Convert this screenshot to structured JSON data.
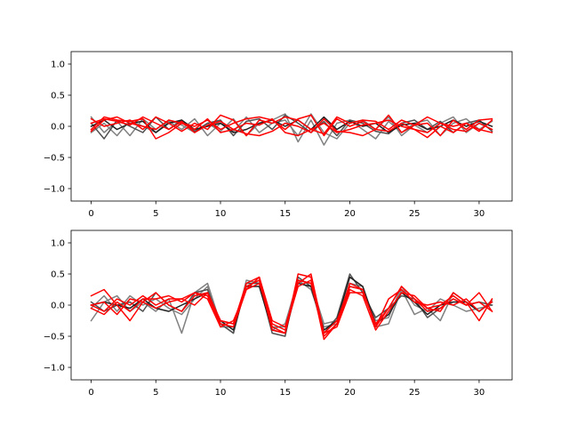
{
  "chart_data": [
    {
      "type": "line",
      "title": "",
      "xlabel": "",
      "ylabel": "",
      "xlim": [
        -1.55,
        32.55
      ],
      "ylim": [
        -1.2,
        1.2
      ],
      "xticks": [
        0,
        5,
        10,
        15,
        20,
        25,
        30
      ],
      "yticks": [
        -1.0,
        -0.5,
        0.0,
        0.5,
        1.0
      ],
      "xtick_labels": [
        "0",
        "5",
        "10",
        "15",
        "20",
        "25",
        "30"
      ],
      "ytick_labels": [
        "−1.0",
        "−0.5",
        "0.0",
        "0.5",
        "1.0"
      ],
      "grid": false,
      "x": [
        0,
        1,
        2,
        3,
        4,
        5,
        6,
        7,
        8,
        9,
        10,
        11,
        12,
        13,
        14,
        15,
        16,
        17,
        18,
        19,
        20,
        21,
        22,
        23,
        24,
        25,
        26,
        27,
        28,
        29,
        30,
        31
      ],
      "series": [
        {
          "color": "#808080",
          "values": [
            0.15,
            -0.1,
            0.08,
            -0.15,
            0.12,
            -0.05,
            0.1,
            0.02,
            -0.1,
            0.05,
            -0.08,
            0.12,
            -0.15,
            0.05,
            0.1,
            0.2,
            -0.25,
            0.1,
            -0.3,
            0.05,
            0.1,
            -0.05,
            -0.2,
            0.08,
            -0.1,
            0.05,
            0.1,
            -0.15,
            0.05,
            0.12,
            -0.05,
            0.08
          ]
        },
        {
          "color": "#808080",
          "values": [
            -0.1,
            0.05,
            -0.15,
            0.1,
            0.0,
            -0.1,
            0.08,
            -0.05,
            0.12,
            -0.15,
            0.05,
            -0.08,
            0.15,
            -0.1,
            0.05,
            0.1,
            -0.15,
            0.2,
            -0.1,
            -0.2,
            0.05,
            0.1,
            -0.05,
            0.15,
            -0.15,
            0.02,
            -0.1,
            0.05,
            0.15,
            -0.1,
            0.05,
            -0.05
          ]
        },
        {
          "color": "#505050",
          "values": [
            0.05,
            -0.2,
            0.1,
            0.0,
            -0.1,
            0.15,
            -0.05,
            0.1,
            -0.08,
            0.05,
            0.1,
            -0.15,
            0.08,
            0.12,
            -0.05,
            0.18,
            0.05,
            -0.1,
            0.08,
            -0.15,
            0.1,
            0.05,
            -0.08,
            -0.12,
            0.05,
            0.1,
            -0.05,
            0.08,
            -0.1,
            0.05,
            0.1,
            -0.08
          ]
        },
        {
          "color": "#202020",
          "values": [
            0.0,
            0.1,
            -0.05,
            0.05,
            0.08,
            -0.1,
            0.05,
            0.1,
            -0.05,
            0.0,
            0.05,
            -0.1,
            -0.05,
            0.05,
            0.1,
            0.0,
            0.1,
            -0.05,
            0.15,
            -0.05,
            0.08,
            0.0,
            0.05,
            -0.1,
            0.02,
            0.05,
            -0.05,
            0.0,
            0.1,
            0.0,
            0.08,
            0.0
          ]
        },
        {
          "color": "#ff0000",
          "values": [
            -0.05,
            0.15,
            0.1,
            0.08,
            0.12,
            -0.2,
            -0.1,
            0.05,
            0.0,
            0.1,
            -0.05,
            0.05,
            0.12,
            0.15,
            0.1,
            -0.05,
            0.12,
            0.18,
            -0.15,
            0.12,
            0.0,
            0.08,
            -0.05,
            0.18,
            -0.1,
            0.02,
            0.05,
            -0.15,
            0.1,
            -0.05,
            0.1,
            0.12
          ]
        },
        {
          "color": "#ff0000",
          "values": [
            0.12,
            0.0,
            0.05,
            0.1,
            -0.05,
            0.15,
            0.05,
            -0.08,
            0.05,
            -0.05,
            0.18,
            0.1,
            -0.15,
            0.1,
            0.05,
            0.15,
            0.1,
            -0.05,
            -0.12,
            0.15,
            0.05,
            0.1,
            0.08,
            -0.05,
            0.1,
            0.02,
            0.15,
            0.05,
            -0.05,
            -0.08,
            0.05,
            -0.05
          ]
        },
        {
          "color": "#ff0000",
          "values": [
            0.05,
            0.12,
            0.08,
            0.02,
            0.15,
            0.05,
            -0.05,
            0.08,
            -0.1,
            0.02,
            0.08,
            -0.05,
            0.05,
            0.02,
            0.12,
            -0.1,
            -0.15,
            -0.05,
            0.05,
            -0.1,
            -0.05,
            0.02,
            0.05,
            0.1,
            0.0,
            -0.05,
            -0.1,
            0.05,
            0.0,
            0.05,
            -0.08,
            0.1
          ]
        },
        {
          "color": "#ff0000",
          "values": [
            -0.08,
            0.1,
            0.15,
            0.05,
            0.0,
            -0.05,
            0.1,
            0.05,
            -0.05,
            0.12,
            -0.1,
            -0.05,
            -0.12,
            -0.15,
            -0.08,
            0.05,
            0.0,
            -0.1,
            0.12,
            -0.08,
            -0.1,
            -0.15,
            -0.05,
            -0.08,
            0.05,
            -0.05,
            -0.18,
            0.0,
            -0.1,
            0.05,
            -0.05,
            -0.1
          ]
        }
      ]
    },
    {
      "type": "line",
      "title": "",
      "xlabel": "",
      "ylabel": "",
      "xlim": [
        -1.55,
        32.55
      ],
      "ylim": [
        -1.2,
        1.2
      ],
      "xticks": [
        0,
        5,
        10,
        15,
        20,
        25,
        30
      ],
      "yticks": [
        -1.0,
        -0.5,
        0.0,
        0.5,
        1.0
      ],
      "xtick_labels": [
        "0",
        "5",
        "10",
        "15",
        "20",
        "25",
        "30"
      ],
      "ytick_labels": [
        "−1.0",
        "−0.5",
        "0.0",
        "0.5",
        "1.0"
      ],
      "grid": false,
      "x": [
        0,
        1,
        2,
        3,
        4,
        5,
        6,
        7,
        8,
        9,
        10,
        11,
        12,
        13,
        14,
        15,
        16,
        17,
        18,
        19,
        20,
        21,
        22,
        23,
        24,
        25,
        26,
        27,
        28,
        29,
        30,
        31
      ],
      "series": [
        {
          "color": "#808080",
          "values": [
            -0.25,
            0.05,
            0.15,
            -0.1,
            0.05,
            -0.1,
            0.1,
            -0.45,
            0.2,
            0.35,
            -0.3,
            -0.45,
            0.4,
            0.35,
            -0.4,
            -0.3,
            0.4,
            0.25,
            -0.35,
            -0.3,
            0.35,
            0.3,
            -0.35,
            -0.3,
            0.25,
            -0.15,
            -0.05,
            -0.25,
            0.2,
            0.05,
            -0.1,
            0.08
          ]
        },
        {
          "color": "#808080",
          "values": [
            -0.05,
            0.15,
            -0.1,
            0.15,
            0.0,
            0.1,
            -0.05,
            -0.15,
            0.1,
            0.3,
            -0.35,
            -0.35,
            0.3,
            0.4,
            -0.35,
            -0.35,
            0.4,
            0.35,
            -0.3,
            -0.25,
            0.3,
            0.25,
            -0.25,
            -0.2,
            0.3,
            0.0,
            -0.1,
            0.1,
            0.0,
            -0.1,
            -0.05,
            0.0
          ]
        },
        {
          "color": "#505050",
          "values": [
            0.05,
            -0.1,
            0.0,
            0.05,
            -0.1,
            0.2,
            0.0,
            -0.1,
            0.2,
            0.25,
            -0.3,
            -0.45,
            0.35,
            0.35,
            -0.45,
            -0.5,
            0.45,
            0.3,
            -0.45,
            -0.2,
            0.5,
            0.2,
            -0.2,
            -0.05,
            0.15,
            0.1,
            -0.2,
            -0.05,
            0.1,
            0.0,
            0.05,
            0.0
          ]
        },
        {
          "color": "#202020",
          "values": [
            0.0,
            0.05,
            0.0,
            -0.05,
            0.1,
            -0.05,
            -0.1,
            0.0,
            0.1,
            0.2,
            -0.25,
            -0.4,
            0.3,
            0.3,
            -0.4,
            -0.45,
            0.35,
            0.3,
            -0.4,
            -0.25,
            0.45,
            0.3,
            -0.3,
            -0.15,
            0.2,
            0.05,
            -0.15,
            0.0,
            0.05,
            0.05,
            -0.1,
            0.05
          ]
        },
        {
          "color": "#ff0000",
          "values": [
            0.15,
            0.25,
            0.0,
            -0.25,
            0.05,
            0.2,
            0.0,
            -0.1,
            0.15,
            0.2,
            -0.25,
            -0.3,
            0.35,
            0.45,
            -0.35,
            -0.45,
            0.5,
            0.45,
            -0.5,
            -0.3,
            0.35,
            0.25,
            -0.35,
            -0.05,
            0.3,
            0.1,
            -0.1,
            -0.05,
            0.1,
            0.0,
            0.2,
            -0.1
          ]
        },
        {
          "color": "#ff0000",
          "values": [
            0.0,
            -0.1,
            0.1,
            0.0,
            0.15,
            0.0,
            0.1,
            0.1,
            0.0,
            0.2,
            -0.25,
            -0.3,
            0.3,
            0.4,
            -0.4,
            -0.45,
            0.4,
            0.35,
            -0.45,
            -0.25,
            0.3,
            0.25,
            -0.35,
            0.1,
            0.25,
            0.05,
            0.0,
            0.05,
            0.0,
            0.1,
            -0.1,
            0.05
          ]
        },
        {
          "color": "#ff0000",
          "values": [
            -0.05,
            -0.15,
            0.05,
            -0.1,
            0.1,
            0.1,
            0.15,
            0.05,
            0.2,
            0.15,
            -0.3,
            -0.35,
            0.25,
            0.45,
            -0.25,
            -0.35,
            0.35,
            0.5,
            -0.45,
            -0.35,
            0.2,
            0.2,
            -0.3,
            -0.05,
            0.3,
            0.1,
            -0.05,
            0.0,
            0.15,
            0.0,
            0.05,
            -0.1
          ]
        },
        {
          "color": "#ff0000",
          "values": [
            0.0,
            0.05,
            -0.15,
            0.1,
            0.05,
            -0.05,
            0.05,
            0.1,
            0.2,
            0.1,
            -0.35,
            -0.25,
            0.25,
            0.35,
            -0.3,
            -0.4,
            0.3,
            0.4,
            -0.55,
            -0.3,
            0.25,
            0.15,
            -0.4,
            -0.1,
            0.2,
            0.15,
            -0.05,
            -0.1,
            0.2,
            0.05,
            -0.25,
            0.1
          ]
        }
      ]
    }
  ]
}
